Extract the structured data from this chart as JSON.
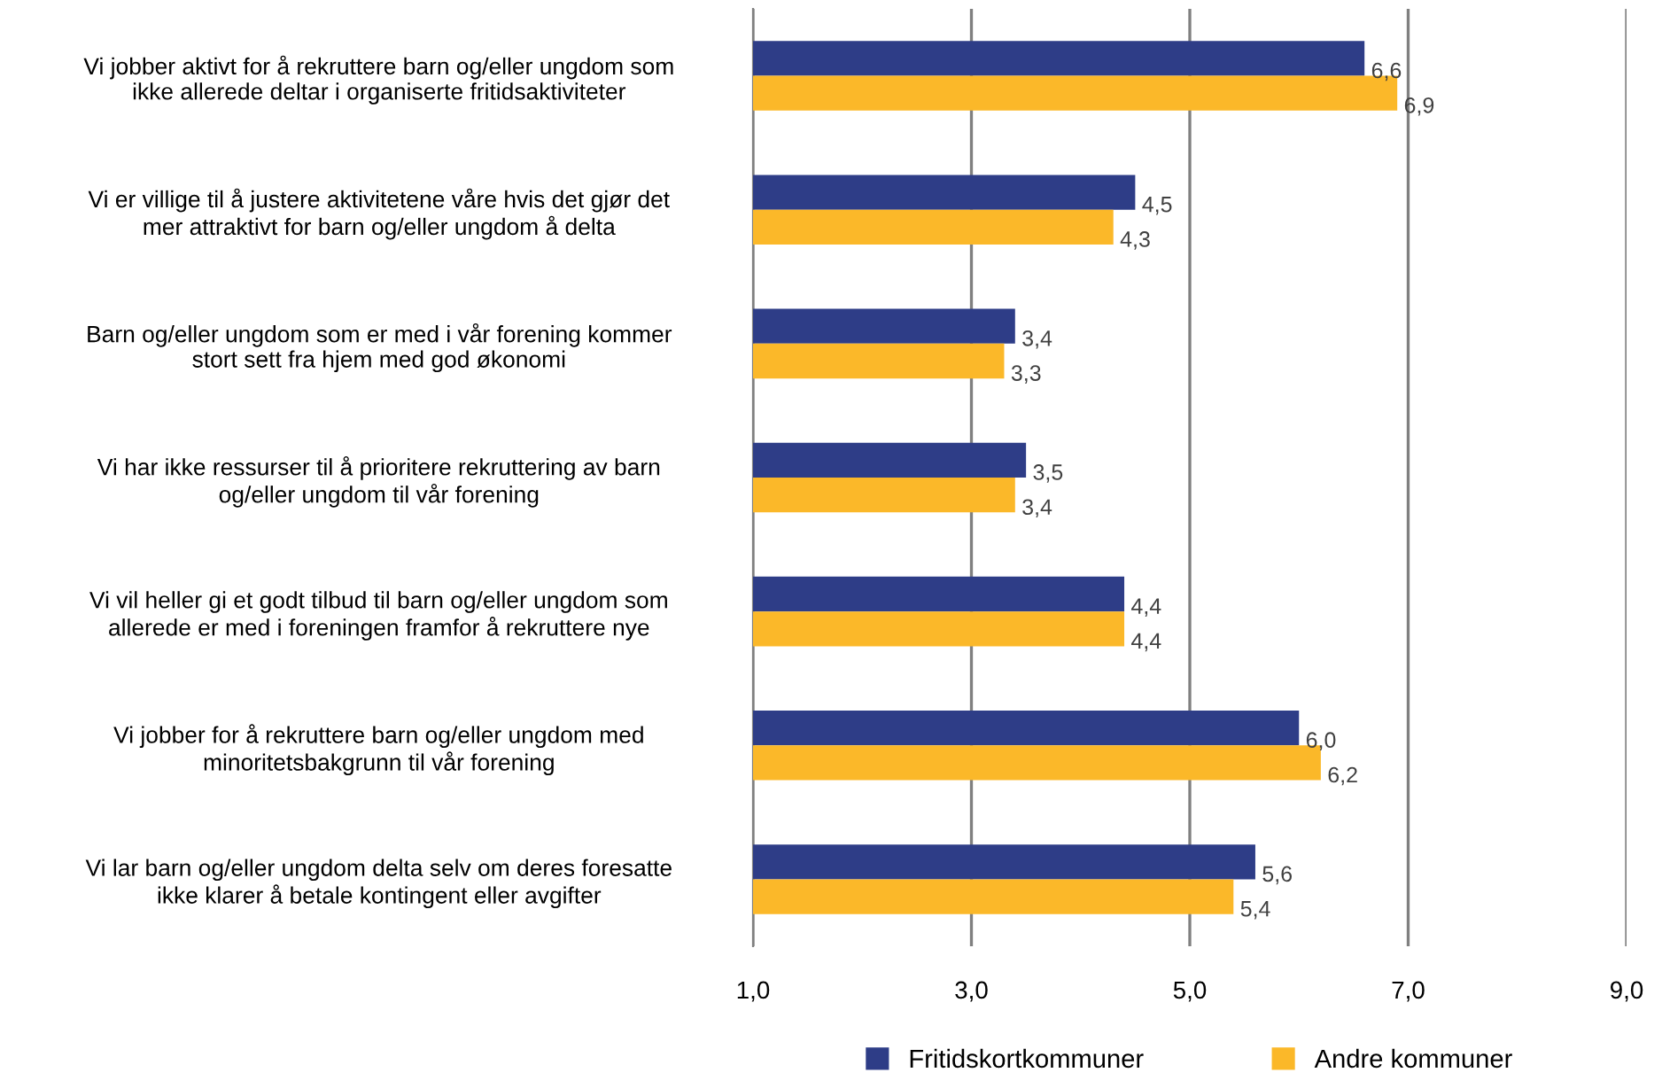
{
  "chart_data": {
    "type": "bar",
    "orientation": "horizontal",
    "categories": [
      "Vi jobber aktivt for å rekruttere barn og/eller ungdom som\nikke allerede deltar i organiserte fritidsaktiviteter",
      "Vi er villige til å justere aktivitetene våre hvis det gjør det\nmer attraktivt for barn og/eller ungdom å delta",
      "Barn og/eller ungdom som er med i vår forening kommer\nstort sett fra hjem med god økonomi",
      "Vi har ikke ressurser til å prioritere rekruttering av barn\nog/eller ungdom til vår forening",
      "Vi vil heller gi et godt tilbud til barn og/eller ungdom som\nallerede er med i foreningen framfor å rekruttere nye",
      "Vi jobber for å rekruttere barn og/eller ungdom med\nminoritetsbakgrunn til vår forening",
      "Vi lar barn og/eller ungdom delta selv om deres foresatte\nikke klarer å betale kontingent eller avgifter"
    ],
    "series": [
      {
        "name": "Fritidskortkommuner",
        "color": "#2e3d87",
        "values": [
          6.6,
          4.5,
          3.4,
          3.5,
          4.4,
          6.0,
          5.6
        ],
        "value_labels": [
          "6,6",
          "4,5",
          "3,4",
          "3,5",
          "4,4",
          "6,0",
          "5,6"
        ]
      },
      {
        "name": "Andre kommuner",
        "color": "#fbb829",
        "values": [
          6.9,
          4.3,
          3.3,
          3.4,
          4.4,
          6.2,
          5.4
        ],
        "value_labels": [
          "6,9",
          "4,3",
          "3,3",
          "3,4",
          "4,4",
          "6,2",
          "5,4"
        ]
      }
    ],
    "xlim": [
      1,
      9
    ],
    "xticks": [
      {
        "value": 1,
        "label": "1,0"
      },
      {
        "value": 3,
        "label": "3,0"
      },
      {
        "value": 5,
        "label": "5,0"
      },
      {
        "value": 7,
        "label": "7,0"
      },
      {
        "value": 9,
        "label": "9,0"
      }
    ],
    "grid": "x",
    "legend": "bottom"
  }
}
